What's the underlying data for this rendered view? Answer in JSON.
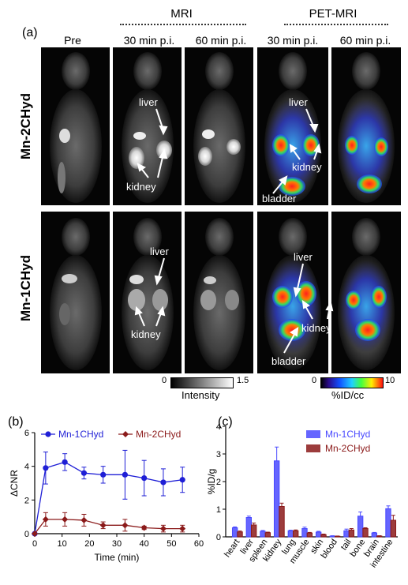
{
  "figure": {
    "panel_a_label": "(a)",
    "panel_b_label": "(b)",
    "panel_c_label": "(c)",
    "section_headers": [
      "MRI",
      "PET-MRI"
    ],
    "column_labels": [
      "Pre",
      "30 min p.i.",
      "60 min p.i.",
      "30 min p.i.",
      "60 min p.i."
    ],
    "row_labels": [
      "Mn-2CHyd",
      "Mn-1CHyd"
    ],
    "annotations_top": {
      "liver_mri": "liver",
      "kidney_mri": "kidney",
      "liver_pet": "liver",
      "kidney_pet": "kidney",
      "bladder_pet": "bladder"
    },
    "annotations_bottom": {
      "liver_mri": "liver",
      "kidney_mri": "kidney",
      "liver_pet": "liver",
      "kidney_pet": "kidney",
      "bladder_pet": "bladder"
    },
    "intensity_scale": {
      "min": "0",
      "max": "1.5",
      "label": "Intensity"
    },
    "pet_scale": {
      "min": "0",
      "max": "10",
      "label": "%ID/cc"
    }
  },
  "chart_data": [
    {
      "type": "line",
      "xlabel": "Time (min)",
      "ylabel": "ΔCNR",
      "xlim": [
        0,
        60
      ],
      "ylim": [
        0,
        6
      ],
      "xticks": [
        "0",
        "10",
        "20",
        "30",
        "40",
        "50",
        "60"
      ],
      "yticks": [
        "0",
        "2",
        "4",
        "6"
      ],
      "legend_position": "top",
      "series": [
        {
          "name": "Mn-1CHyd",
          "color": "#1f1fd6",
          "x": [
            0,
            4,
            11,
            18,
            25,
            33,
            40,
            47,
            54
          ],
          "y": [
            0,
            3.9,
            4.25,
            3.6,
            3.5,
            3.5,
            3.3,
            3.05,
            3.2
          ],
          "err": [
            0,
            0.95,
            0.5,
            0.35,
            0.5,
            1.45,
            1.05,
            0.8,
            0.75
          ]
        },
        {
          "name": "Mn-2CHyd",
          "color": "#8b1a1a",
          "x": [
            0,
            4,
            11,
            18,
            25,
            33,
            40,
            47,
            54
          ],
          "y": [
            0,
            0.85,
            0.85,
            0.8,
            0.5,
            0.5,
            0.35,
            0.3,
            0.3
          ],
          "err": [
            0,
            0.4,
            0.4,
            0.35,
            0.2,
            0.35,
            0.1,
            0.2,
            0.2
          ]
        }
      ]
    },
    {
      "type": "bar",
      "ylabel": "%ID/g",
      "ylim": [
        0,
        4
      ],
      "yticks": [
        "0",
        "1",
        "2",
        "3",
        "4"
      ],
      "legend_position": "top-right",
      "categories": [
        "heart",
        "liver",
        "spleen",
        "kidney",
        "lung",
        "muscle",
        "skin",
        "blood",
        "tail",
        "bone",
        "brain",
        "intestine"
      ],
      "series": [
        {
          "name": "Mn-1CHyd",
          "color": "#4a4aff",
          "values": [
            0.33,
            0.7,
            0.2,
            2.75,
            0.22,
            0.3,
            0.17,
            0.03,
            0.22,
            0.75,
            0.14,
            1.02
          ],
          "err": [
            0.03,
            0.05,
            0.03,
            0.5,
            0.02,
            0.05,
            0.03,
            0.01,
            0.06,
            0.15,
            0.02,
            0.1
          ]
        },
        {
          "name": "Mn-2CHyd",
          "color": "#8b1a1a",
          "values": [
            0.18,
            0.43,
            0.15,
            1.1,
            0.22,
            0.14,
            0.08,
            0.02,
            0.25,
            0.3,
            0.03,
            0.6
          ],
          "err": [
            0.03,
            0.07,
            0.02,
            0.12,
            0.03,
            0.02,
            0.02,
            0.01,
            0.05,
            0.03,
            0.01,
            0.18
          ]
        }
      ]
    }
  ]
}
